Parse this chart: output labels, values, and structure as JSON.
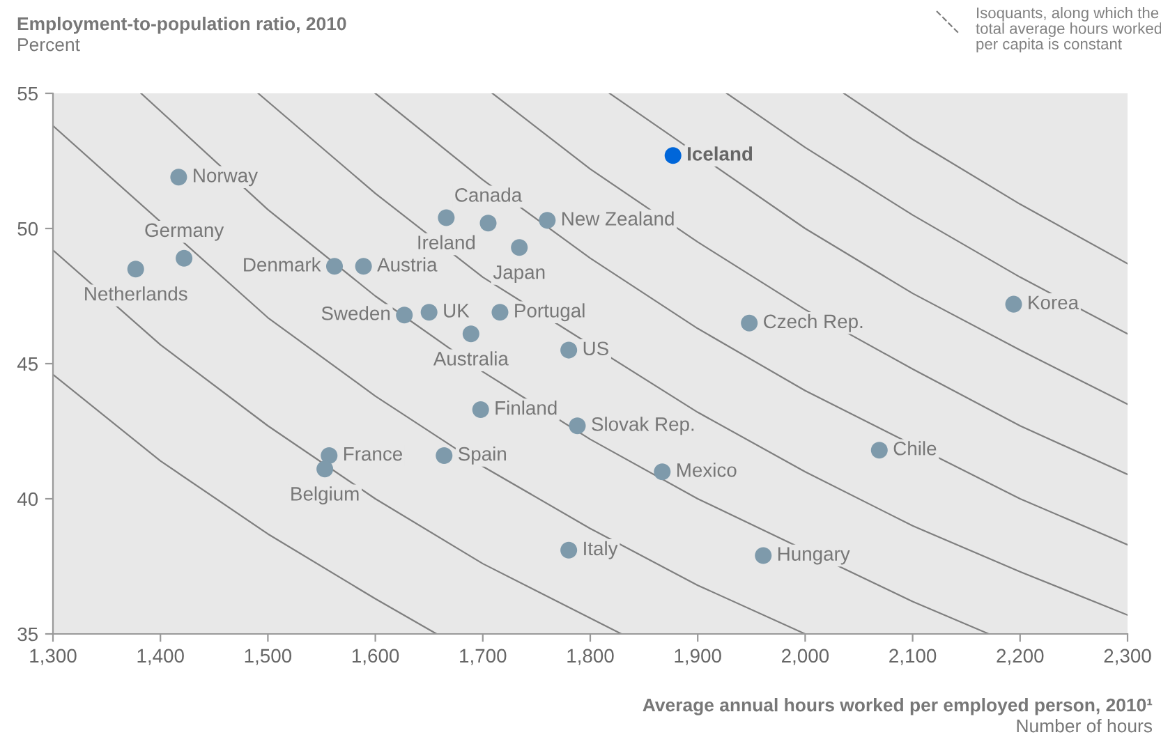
{
  "chart_data": {
    "type": "scatter",
    "xlabel": "Average annual hours worked per employed person, 2010¹\nNumber of hours",
    "ylabel": "Employment-to-population ratio, 2010\nPercent",
    "xlim": [
      1300,
      2300
    ],
    "xticks": [
      {
        "value": 1300,
        "label": "1,300"
      },
      {
        "value": 1400,
        "label": "1,400"
      },
      {
        "value": 1500,
        "label": "1,500"
      },
      {
        "value": 1600,
        "label": "1,600"
      },
      {
        "value": 1700,
        "label": "1,700"
      },
      {
        "value": 1800,
        "label": "1,800"
      },
      {
        "value": 1900,
        "label": "1,900"
      },
      {
        "value": 2000,
        "label": "2,000"
      },
      {
        "value": 2100,
        "label": "2,100"
      },
      {
        "value": 2200,
        "label": "2,200"
      },
      {
        "value": 2300,
        "label": "2,300"
      }
    ],
    "ylim": [
      35,
      55
    ],
    "yticks": [
      35,
      40,
      45,
      50,
      55
    ],
    "grid": false,
    "series": [
      {
        "type": "line",
        "color": "#7f7f7f",
        "x": [
          1300,
          1400,
          1500,
          1600,
          1657
        ],
        "values": [
          44.6,
          41.4,
          38.7,
          36.3,
          35.0
        ]
      },
      {
        "type": "line",
        "color": "#7f7f7f",
        "x": [
          1300,
          1400,
          1500,
          1600,
          1700,
          1829
        ],
        "values": [
          49.2,
          45.7,
          42.7,
          40.0,
          37.6,
          35.0
        ]
      },
      {
        "type": "line",
        "color": "#7f7f7f",
        "x": [
          1300,
          1500,
          1600,
          1700,
          1800,
          1900,
          2000
        ],
        "values": [
          53.8,
          46.7,
          43.8,
          41.2,
          38.9,
          36.8,
          35.0
        ]
      },
      {
        "type": "line",
        "color": "#7f7f7f",
        "x": [
          1382,
          1500,
          1600,
          1700,
          1800,
          1900,
          2100,
          2171
        ],
        "values": [
          55.0,
          50.7,
          47.5,
          44.7,
          42.2,
          40.0,
          36.2,
          35.0
        ]
      },
      {
        "type": "line",
        "color": "#7f7f7f",
        "x": [
          1491,
          1600,
          1700,
          1900,
          2000,
          2100,
          2200,
          2300
        ],
        "values": [
          55.0,
          51.3,
          48.2,
          43.2,
          41.0,
          39.0,
          37.3,
          35.7
        ]
      },
      {
        "type": "line",
        "color": "#7f7f7f",
        "x": [
          1600,
          1700,
          1800,
          1900,
          2000,
          2200,
          2300
        ],
        "values": [
          55.0,
          51.8,
          48.9,
          46.3,
          44.0,
          40.0,
          38.3
        ]
      },
      {
        "type": "line",
        "color": "#7f7f7f",
        "x": [
          1709,
          1800,
          1900,
          2000,
          2100,
          2200,
          2300
        ],
        "values": [
          55.0,
          52.2,
          49.5,
          47.0,
          44.8,
          42.7,
          40.9
        ]
      },
      {
        "type": "line",
        "color": "#7f7f7f",
        "x": [
          1818,
          2000,
          2100,
          2200,
          2300
        ],
        "values": [
          55.0,
          50.0,
          47.6,
          45.5,
          43.5
        ]
      },
      {
        "type": "line",
        "color": "#7f7f7f",
        "x": [
          1927,
          2000,
          2100,
          2200,
          2300
        ],
        "values": [
          55.0,
          53.0,
          50.5,
          48.2,
          46.1
        ]
      },
      {
        "type": "line",
        "color": "#7f7f7f",
        "x": [
          2036,
          2100,
          2200,
          2300
        ],
        "values": [
          55.0,
          53.3,
          50.9,
          48.7
        ]
      },
      {
        "marker": "circle",
        "color": "#7e9aab",
        "x": [
          1417,
          1422,
          1377,
          1562,
          1589,
          1627,
          1650,
          1705,
          1666,
          1734,
          1760,
          1716,
          1689,
          1780,
          1948,
          2194,
          1698,
          1788,
          1867,
          2069,
          1557,
          1553,
          1664,
          1780,
          1961
        ],
        "values": [
          51.9,
          48.9,
          48.5,
          48.6,
          48.6,
          46.8,
          46.9,
          50.2,
          50.4,
          49.3,
          50.3,
          46.9,
          46.1,
          45.5,
          46.5,
          47.2,
          43.3,
          42.7,
          41.0,
          41.8,
          41.6,
          41.1,
          41.6,
          38.1,
          37.9
        ]
      },
      {
        "marker": "circle",
        "color": "#0066d9",
        "x": [
          1877
        ],
        "values": [
          52.7
        ]
      }
    ],
    "annotations": [
      {
        "text": "Norway",
        "x": 1417,
        "y": 51.9
      },
      {
        "text": "Germany",
        "x": 1422,
        "y": 48.9
      },
      {
        "text": "Netherlands",
        "x": 1377,
        "y": 48.5
      },
      {
        "text": "Denmark",
        "x": 1562,
        "y": 48.6
      },
      {
        "text": "Austria",
        "x": 1589,
        "y": 48.6
      },
      {
        "text": "Sweden",
        "x": 1627,
        "y": 46.8
      },
      {
        "text": "UK",
        "x": 1650,
        "y": 46.9
      },
      {
        "text": "Canada",
        "x": 1705,
        "y": 50.2
      },
      {
        "text": "Ireland",
        "x": 1666,
        "y": 50.4
      },
      {
        "text": "Japan",
        "x": 1734,
        "y": 49.3
      },
      {
        "text": "New Zealand",
        "x": 1760,
        "y": 50.3
      },
      {
        "text": "Portugal",
        "x": 1716,
        "y": 46.9
      },
      {
        "text": "Australia",
        "x": 1689,
        "y": 46.1
      },
      {
        "text": "US",
        "x": 1780,
        "y": 45.5
      },
      {
        "text": "Czech Rep.",
        "x": 1948,
        "y": 46.5
      },
      {
        "text": "Korea",
        "x": 2194,
        "y": 47.2
      },
      {
        "text": "Finland",
        "x": 1698,
        "y": 43.3
      },
      {
        "text": "Slovak Rep.",
        "x": 1788,
        "y": 42.7
      },
      {
        "text": "Mexico",
        "x": 1867,
        "y": 41.0
      },
      {
        "text": "Chile",
        "x": 2069,
        "y": 41.8
      },
      {
        "text": "France",
        "x": 1557,
        "y": 41.6
      },
      {
        "text": "Belgium",
        "x": 1553,
        "y": 41.1
      },
      {
        "text": "Spain",
        "x": 1664,
        "y": 41.6
      },
      {
        "text": "Italy",
        "x": 1780,
        "y": 38.1
      },
      {
        "text": "Hungary",
        "x": 1961,
        "y": 37.9
      },
      {
        "text": "Iceland",
        "x": 1877,
        "y": 52.7
      },
      "Isoquants, along which the\ntotal average hours worked\nper capita is constant"
    ]
  }
}
